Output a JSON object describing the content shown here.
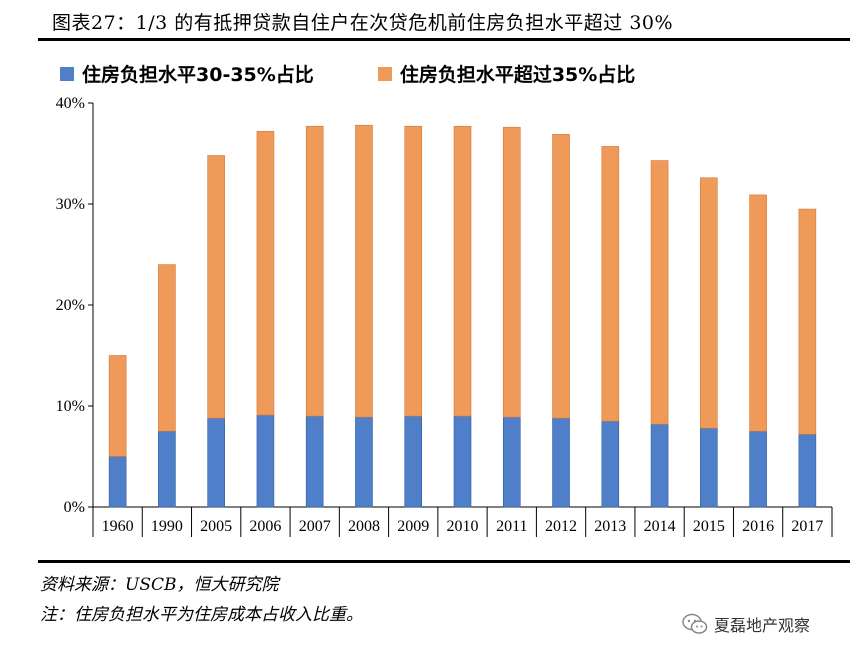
{
  "title": "图表27：1/3 的有抵押贷款自住户在次贷危机前住房负担水平超过 30%",
  "notes": {
    "source": "资料来源：USCB，恒大研究院",
    "note": "注：住房负担水平为住房成本占收入比重。"
  },
  "watermark": "夏磊地产观察",
  "colors": {
    "series1": "#4f7fc8",
    "series2": "#f09a5a"
  },
  "chart_data": {
    "type": "bar",
    "stacked": true,
    "title": "",
    "xlabel": "",
    "ylabel": "",
    "ylim": [
      0,
      40
    ],
    "yticks": [
      0,
      10,
      20,
      30,
      40
    ],
    "ytick_labels": [
      "0%",
      "10%",
      "20%",
      "30%",
      "40%"
    ],
    "categories": [
      "1960",
      "1990",
      "2005",
      "2006",
      "2007",
      "2008",
      "2009",
      "2010",
      "2011",
      "2012",
      "2013",
      "2014",
      "2015",
      "2016",
      "2017"
    ],
    "series": [
      {
        "name": "住房负担水平30-35%占比",
        "values": [
          5.0,
          7.5,
          8.8,
          9.1,
          9.0,
          8.9,
          9.0,
          9.0,
          8.9,
          8.8,
          8.5,
          8.2,
          7.8,
          7.5,
          7.2
        ]
      },
      {
        "name": "住房负担水平超过35%占比",
        "values": [
          10.0,
          16.5,
          26.0,
          28.1,
          28.7,
          28.9,
          28.7,
          28.7,
          28.7,
          28.1,
          27.2,
          26.1,
          24.8,
          23.4,
          22.3
        ]
      }
    ],
    "legend_position": "top"
  }
}
